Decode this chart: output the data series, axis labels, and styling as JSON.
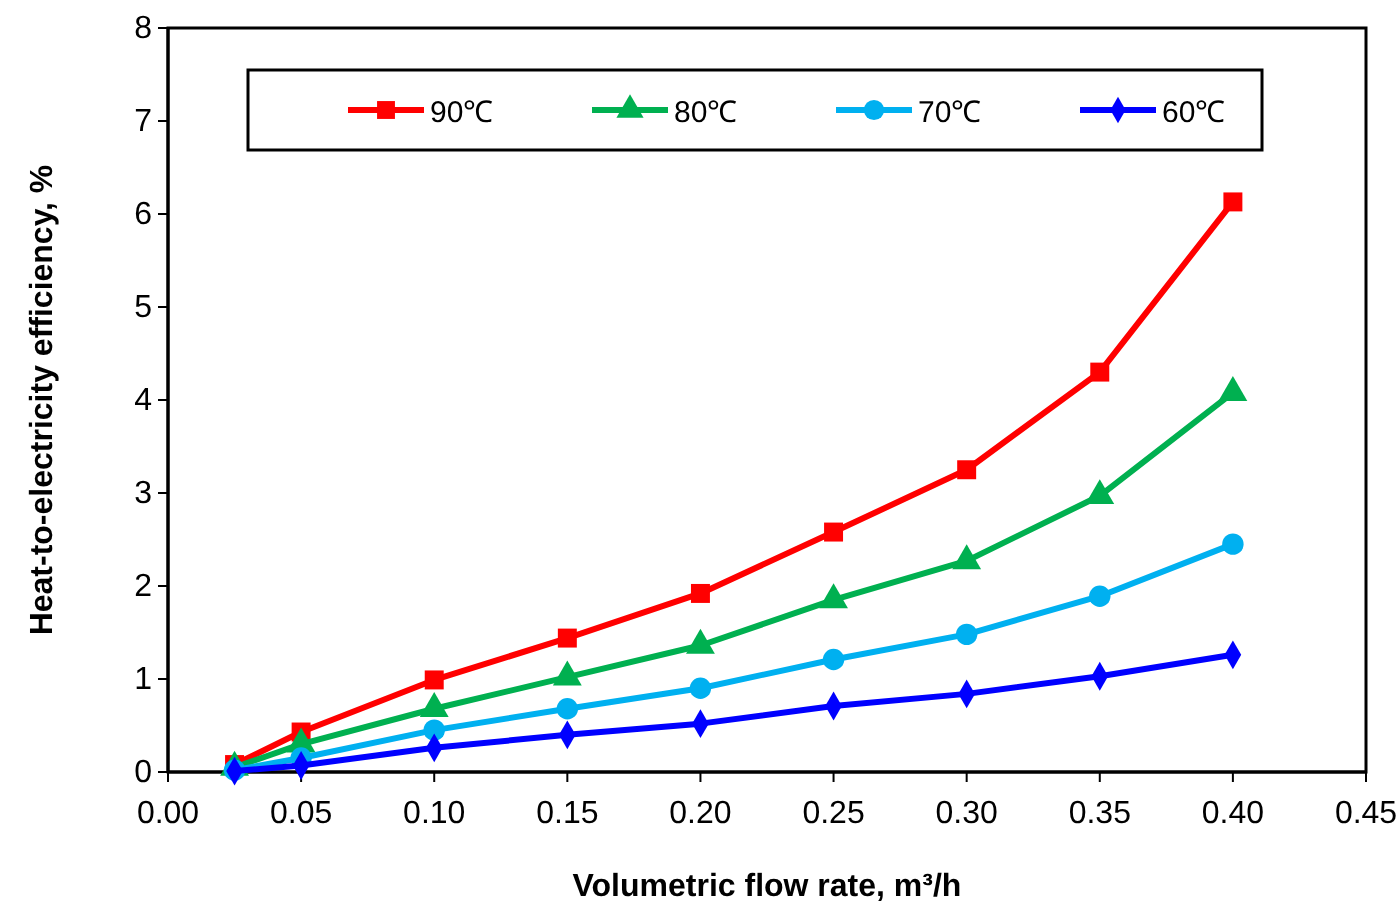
{
  "chart_data": {
    "type": "line",
    "xlabel": "Volumetric flow rate, m³/h",
    "ylabel": "Heat-to-electricity efficiency, %",
    "x": [
      0.025,
      0.05,
      0.1,
      0.15,
      0.2,
      0.25,
      0.3,
      0.35,
      0.4
    ],
    "series": [
      {
        "name": "90℃",
        "color": "#ff0000",
        "marker": "square",
        "values": [
          0.08,
          0.43,
          0.99,
          1.44,
          1.92,
          2.58,
          3.25,
          4.3,
          6.13
        ]
      },
      {
        "name": "80℃",
        "color": "#00b050",
        "marker": "triangle",
        "values": [
          0.05,
          0.3,
          0.68,
          1.02,
          1.36,
          1.85,
          2.27,
          2.97,
          4.08
        ]
      },
      {
        "name": "70℃",
        "color": "#00b0f0",
        "marker": "circle",
        "values": [
          0.02,
          0.15,
          0.45,
          0.68,
          0.9,
          1.21,
          1.48,
          1.89,
          2.45
        ]
      },
      {
        "name": "60℃",
        "color": "#0000ff",
        "marker": "diamond",
        "values": [
          0.01,
          0.07,
          0.26,
          0.4,
          0.52,
          0.71,
          0.84,
          1.03,
          1.26
        ]
      }
    ],
    "xlim": [
      0,
      0.45
    ],
    "xticks": [
      {
        "value": 0,
        "label": "0.00"
      },
      {
        "value": 0.05,
        "label": "0.05"
      },
      {
        "value": 0.1,
        "label": "0.10"
      },
      {
        "value": 0.15,
        "label": "0.15"
      },
      {
        "value": 0.2,
        "label": "0.20"
      },
      {
        "value": 0.25,
        "label": "0.25"
      },
      {
        "value": 0.3,
        "label": "0.30"
      },
      {
        "value": 0.35,
        "label": "0.35"
      },
      {
        "value": 0.4,
        "label": "0.40"
      },
      {
        "value": 0.45,
        "label": "0.45"
      }
    ],
    "ylim": [
      0,
      8
    ],
    "yticks": [
      0,
      1,
      2,
      3,
      4,
      5,
      6,
      7,
      8
    ],
    "grid": false,
    "legend": "top",
    "line_style": "solid"
  }
}
